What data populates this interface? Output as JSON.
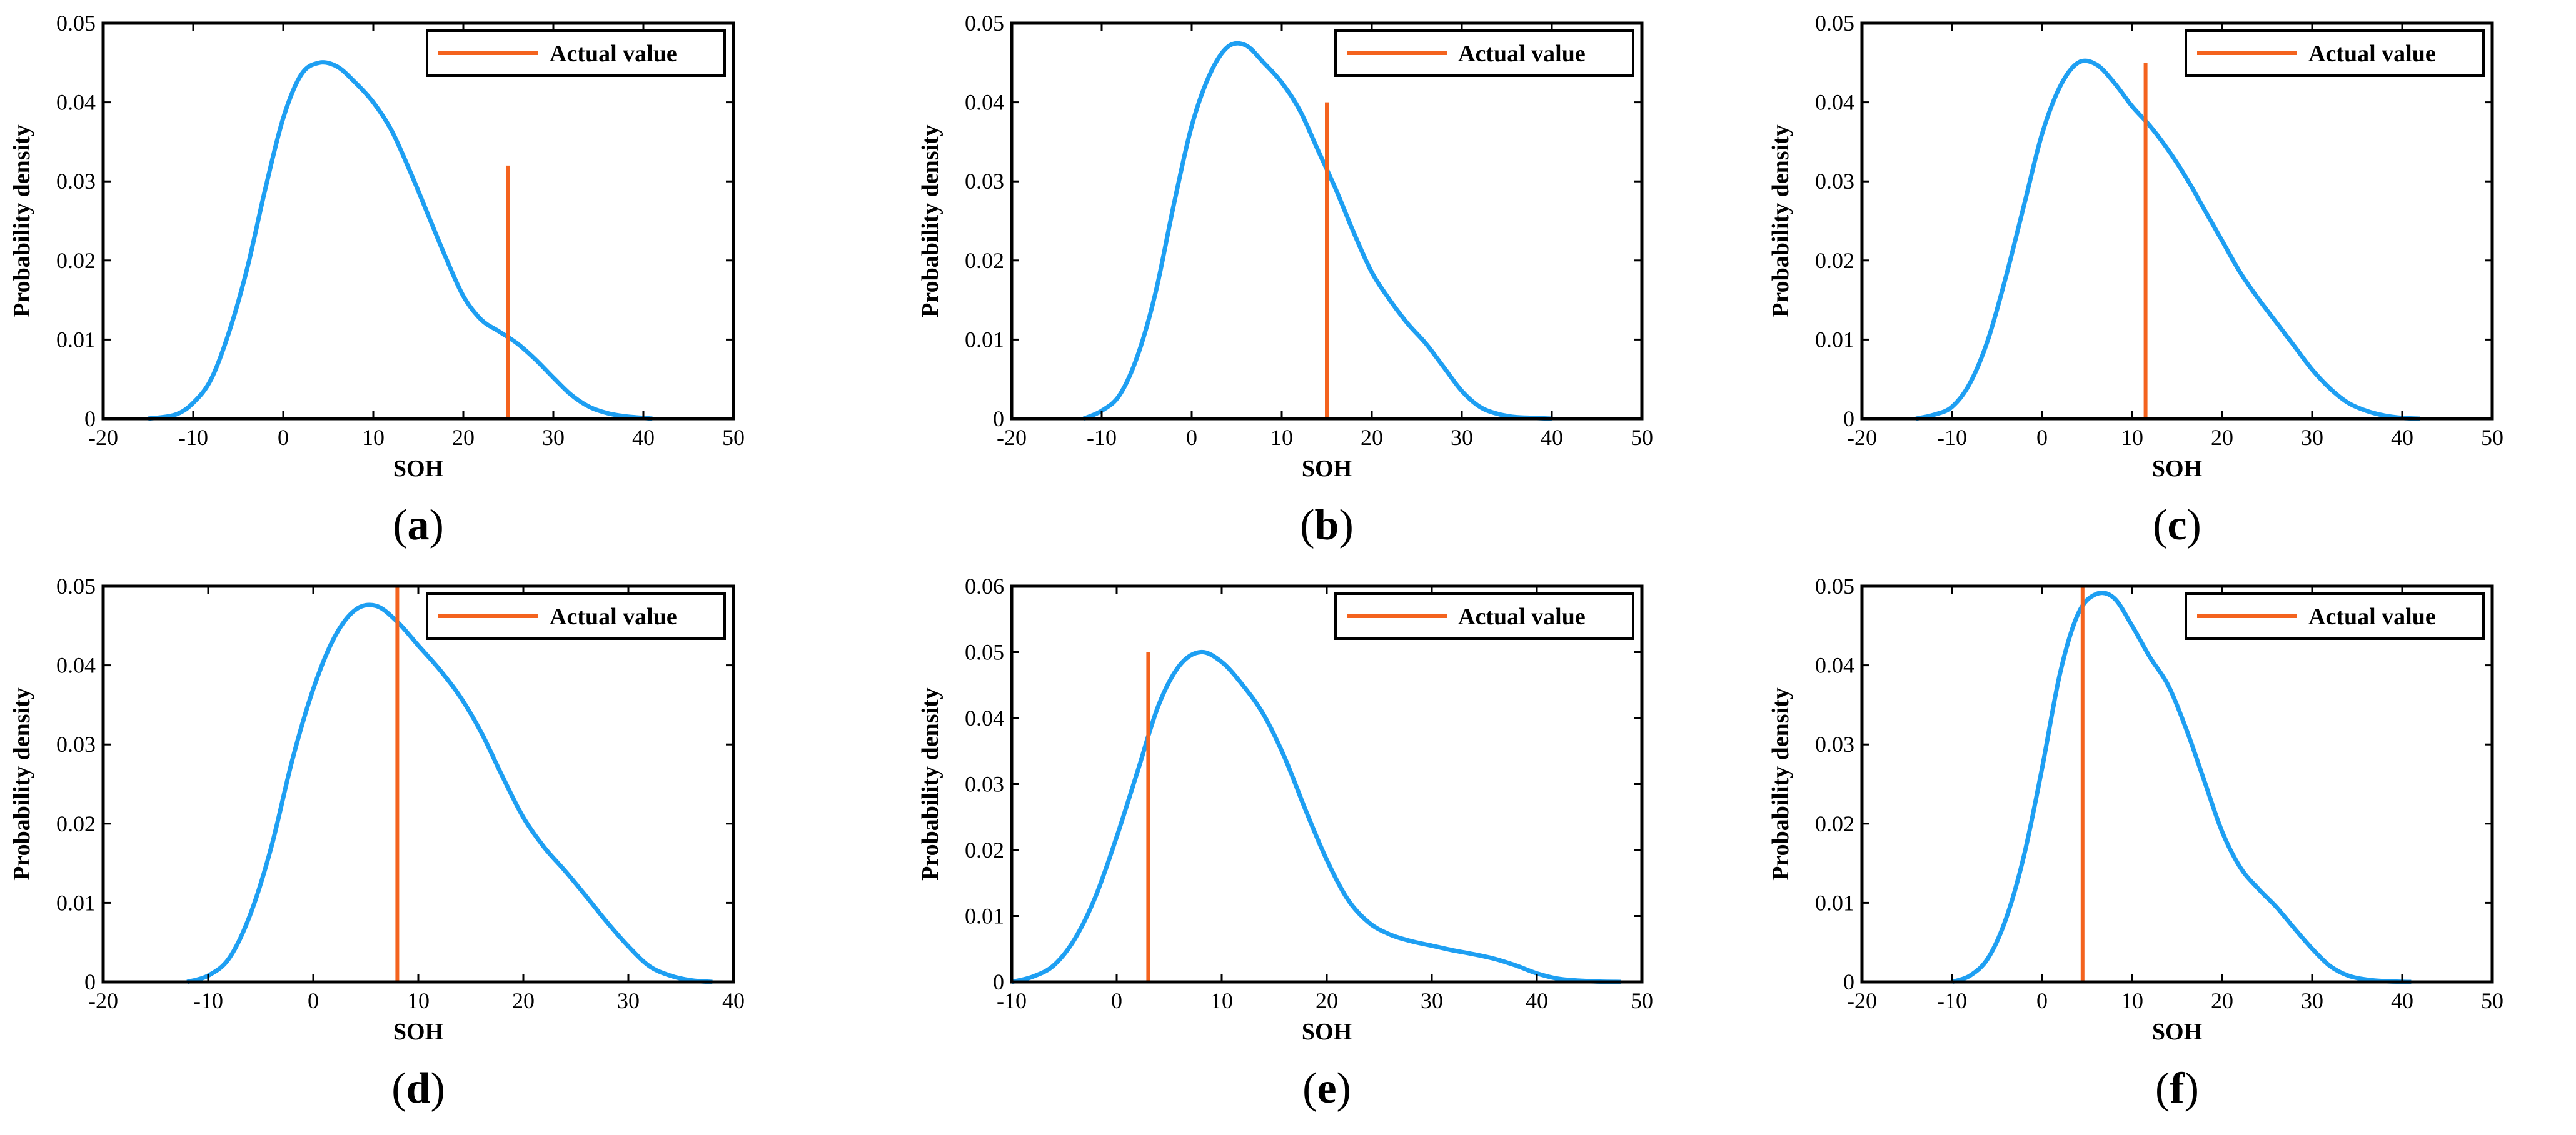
{
  "chart_data": [
    {
      "type": "line",
      "label": "a",
      "xlim": [
        -20,
        50
      ],
      "xticks": [
        -20,
        -10,
        0,
        10,
        20,
        30,
        40,
        50
      ],
      "ylim": [
        0,
        0.05
      ],
      "yticks": [
        0,
        0.01,
        0.02,
        0.03,
        0.04,
        0.05
      ],
      "yticklabels": [
        "0",
        "0.01",
        "0.02",
        "0.03",
        "0.04",
        "0.05"
      ],
      "xlabel": "SOH",
      "ylabel": "Probability density",
      "legend": "Actual value",
      "colors": {
        "density": "#1e9ff2",
        "actual": "#f4631e"
      },
      "actual_value": {
        "x": 25,
        "y_top": 0.032
      },
      "density": {
        "x": [
          -15,
          -12,
          -10,
          -8,
          -6,
          -4,
          -2,
          0,
          2,
          4,
          6,
          8,
          10,
          12,
          14,
          16,
          18,
          20,
          22,
          24,
          26,
          28,
          30,
          32,
          34,
          36,
          38,
          40,
          41
        ],
        "y": [
          0,
          0.0005,
          0.002,
          0.005,
          0.011,
          0.019,
          0.029,
          0.038,
          0.0435,
          0.045,
          0.0445,
          0.0425,
          0.04,
          0.0365,
          0.0315,
          0.026,
          0.0205,
          0.0155,
          0.0125,
          0.011,
          0.0095,
          0.0075,
          0.0052,
          0.003,
          0.0015,
          0.0007,
          0.0003,
          0.0001,
          0
        ]
      }
    },
    {
      "type": "line",
      "label": "b",
      "xlim": [
        -20,
        50
      ],
      "xticks": [
        -20,
        -10,
        0,
        10,
        20,
        30,
        40,
        50
      ],
      "ylim": [
        0,
        0.05
      ],
      "yticks": [
        0,
        0.01,
        0.02,
        0.03,
        0.04,
        0.05
      ],
      "yticklabels": [
        "0",
        "0.01",
        "0.02",
        "0.03",
        "0.04",
        "0.05"
      ],
      "xlabel": "SOH",
      "ylabel": "Probability density",
      "legend": "Actual value",
      "colors": {
        "density": "#1e9ff2",
        "actual": "#f4631e"
      },
      "actual_value": {
        "x": 15,
        "y_top": 0.04
      },
      "density": {
        "x": [
          -12,
          -10,
          -8,
          -6,
          -4,
          -2,
          0,
          2,
          4,
          6,
          8,
          10,
          12,
          14,
          16,
          18,
          20,
          22,
          24,
          26,
          28,
          30,
          32,
          34,
          36,
          38,
          40
        ],
        "y": [
          0,
          0.001,
          0.003,
          0.008,
          0.016,
          0.027,
          0.037,
          0.0435,
          0.047,
          0.0472,
          0.045,
          0.0425,
          0.039,
          0.034,
          0.029,
          0.0235,
          0.0185,
          0.015,
          0.012,
          0.0095,
          0.0065,
          0.0035,
          0.0015,
          0.0006,
          0.0002,
          0.0001,
          0
        ]
      }
    },
    {
      "type": "line",
      "label": "c",
      "xlim": [
        -20,
        50
      ],
      "xticks": [
        -20,
        -10,
        0,
        10,
        20,
        30,
        40,
        50
      ],
      "ylim": [
        0,
        0.05
      ],
      "yticks": [
        0,
        0.01,
        0.02,
        0.03,
        0.04,
        0.05
      ],
      "yticklabels": [
        "0",
        "0.01",
        "0.02",
        "0.03",
        "0.04",
        "0.05"
      ],
      "xlabel": "SOH",
      "ylabel": "Probability density",
      "legend": "Actual value",
      "colors": {
        "density": "#1e9ff2",
        "actual": "#f4631e"
      },
      "actual_value": {
        "x": 11.5,
        "y_top": 0.045
      },
      "density": {
        "x": [
          -14,
          -12,
          -10,
          -8,
          -6,
          -4,
          -2,
          0,
          2,
          4,
          6,
          8,
          10,
          12,
          14,
          16,
          18,
          20,
          22,
          24,
          26,
          28,
          30,
          32,
          34,
          36,
          38,
          40,
          42
        ],
        "y": [
          0,
          0.0005,
          0.0015,
          0.0045,
          0.01,
          0.018,
          0.027,
          0.036,
          0.042,
          0.045,
          0.0448,
          0.0425,
          0.0395,
          0.037,
          0.034,
          0.0305,
          0.0265,
          0.0225,
          0.0185,
          0.0152,
          0.0122,
          0.0092,
          0.0062,
          0.0038,
          0.002,
          0.001,
          0.0004,
          0.0001,
          0
        ]
      }
    },
    {
      "type": "line",
      "label": "d",
      "xlim": [
        -20,
        40
      ],
      "xticks": [
        -20,
        -10,
        0,
        10,
        20,
        30,
        40
      ],
      "ylim": [
        0,
        0.05
      ],
      "yticks": [
        0,
        0.01,
        0.02,
        0.03,
        0.04,
        0.05
      ],
      "yticklabels": [
        "0",
        "0.01",
        "0.02",
        "0.03",
        "0.04",
        "0.05"
      ],
      "xlabel": "SOH",
      "ylabel": "Probability density",
      "legend": "Actual value",
      "colors": {
        "density": "#1e9ff2",
        "actual": "#f4631e"
      },
      "actual_value": {
        "x": 8,
        "y_top": 0.05
      },
      "density": {
        "x": [
          -12,
          -10,
          -8,
          -6,
          -4,
          -2,
          0,
          2,
          4,
          6,
          8,
          10,
          12,
          14,
          16,
          18,
          20,
          22,
          24,
          26,
          28,
          30,
          32,
          34,
          36,
          38
        ],
        "y": [
          0,
          0.0008,
          0.003,
          0.0085,
          0.017,
          0.028,
          0.037,
          0.0435,
          0.047,
          0.0475,
          0.0455,
          0.0425,
          0.0395,
          0.036,
          0.0315,
          0.026,
          0.0208,
          0.017,
          0.014,
          0.0108,
          0.0075,
          0.0045,
          0.002,
          0.0008,
          0.0002,
          0
        ]
      }
    },
    {
      "type": "line",
      "label": "e",
      "xlim": [
        -10,
        50
      ],
      "xticks": [
        -10,
        0,
        10,
        20,
        30,
        40,
        50
      ],
      "ylim": [
        0,
        0.06
      ],
      "yticks": [
        0,
        0.01,
        0.02,
        0.03,
        0.04,
        0.05,
        0.06
      ],
      "yticklabels": [
        "0",
        "0.01",
        "0.02",
        "0.03",
        "0.04",
        "0.05",
        "0.06"
      ],
      "xlabel": "SOH",
      "ylabel": "Probability density",
      "legend": "Actual value",
      "colors": {
        "density": "#1e9ff2",
        "actual": "#f4631e"
      },
      "actual_value": {
        "x": 3,
        "y_top": 0.05
      },
      "density": {
        "x": [
          -10,
          -8,
          -6,
          -4,
          -2,
          0,
          2,
          4,
          6,
          8,
          10,
          12,
          14,
          16,
          18,
          20,
          22,
          24,
          26,
          28,
          30,
          32,
          34,
          36,
          38,
          40,
          42,
          44,
          46,
          48
        ],
        "y": [
          0,
          0.0008,
          0.0025,
          0.0065,
          0.013,
          0.022,
          0.032,
          0.042,
          0.048,
          0.05,
          0.0485,
          0.045,
          0.0405,
          0.034,
          0.026,
          0.0185,
          0.0125,
          0.009,
          0.0072,
          0.0062,
          0.0055,
          0.0048,
          0.0042,
          0.0035,
          0.0025,
          0.0013,
          0.0005,
          0.0002,
          5e-05,
          0
        ]
      }
    },
    {
      "type": "line",
      "label": "f",
      "xlim": [
        -20,
        50
      ],
      "xticks": [
        -20,
        -10,
        0,
        10,
        20,
        30,
        40,
        50
      ],
      "ylim": [
        0,
        0.05
      ],
      "yticks": [
        0,
        0.01,
        0.02,
        0.03,
        0.04,
        0.05
      ],
      "yticklabels": [
        "0",
        "0.01",
        "0.02",
        "0.03",
        "0.04",
        "0.05"
      ],
      "xlabel": "SOH",
      "ylabel": "Probability density",
      "legend": "Actual value",
      "colors": {
        "density": "#1e9ff2",
        "actual": "#f4631e"
      },
      "actual_value": {
        "x": 4.5,
        "y_top": 0.05
      },
      "density": {
        "x": [
          -10,
          -8,
          -6,
          -4,
          -2,
          0,
          2,
          4,
          6,
          8,
          10,
          12,
          14,
          16,
          18,
          20,
          22,
          24,
          26,
          28,
          30,
          32,
          34,
          36,
          38,
          40,
          41
        ],
        "y": [
          0,
          0.0008,
          0.003,
          0.008,
          0.016,
          0.027,
          0.039,
          0.0465,
          0.049,
          0.0485,
          0.045,
          0.041,
          0.0375,
          0.032,
          0.0255,
          0.019,
          0.0145,
          0.0118,
          0.0095,
          0.0068,
          0.0042,
          0.002,
          0.0008,
          0.0003,
          0.0001,
          2e-05,
          0
        ]
      }
    }
  ]
}
